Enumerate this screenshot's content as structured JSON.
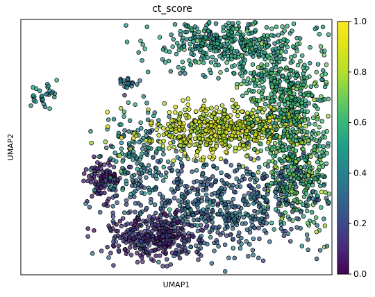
{
  "chart_data": {
    "type": "scatter",
    "title": "ct_score",
    "xlabel": "UMAP1",
    "ylabel": "UMAP2",
    "x_ticks": "hidden",
    "y_ticks": "hidden",
    "grid": false,
    "point_style": {
      "edge_color": "#000000",
      "alpha": 0.75
    },
    "colorbar": {
      "label": "",
      "colormap": "viridis",
      "range": [
        0,
        1
      ],
      "ticks": [
        {
          "value": 0.0,
          "label": "0.0"
        },
        {
          "value": 0.2,
          "label": "0.2"
        },
        {
          "value": 0.4,
          "label": "0.4"
        },
        {
          "value": 0.6,
          "label": "0.6"
        },
        {
          "value": 0.8,
          "label": "0.8"
        },
        {
          "value": 1.0,
          "label": "1.0"
        }
      ],
      "placement": "right"
    },
    "regions": [
      {
        "note": "small isolated cluster, far left",
        "center": [
          -9.2,
          6.2
        ],
        "spread": [
          0.5,
          0.4
        ],
        "count": 30,
        "score_mean": 0.45,
        "score_sd": 0.06
      },
      {
        "note": "upper-left small cluster",
        "center": [
          -4.4,
          7.0
        ],
        "spread": [
          0.4,
          0.15
        ],
        "count": 20,
        "score_mean": 0.35,
        "score_sd": 0.05
      },
      {
        "note": "far-left dark cluster",
        "center": [
          -5.7,
          1.7
        ],
        "spread": [
          0.5,
          0.55
        ],
        "count": 110,
        "score_mean": 0.1,
        "score_sd": 0.06
      },
      {
        "note": "left arm",
        "center": [
          -3.8,
          3.2
        ],
        "spread": [
          1.1,
          1.2
        ],
        "count": 170,
        "score_mean": 0.4,
        "score_sd": 0.1
      },
      {
        "note": "top dome",
        "center": [
          1.4,
          9.2
        ],
        "spread": [
          2.0,
          0.8
        ],
        "count": 420,
        "score_mean": 0.5,
        "score_sd": 0.08
      },
      {
        "note": "right upper band",
        "center": [
          4.8,
          6.4
        ],
        "spread": [
          1.3,
          1.4
        ],
        "count": 420,
        "score_mean": 0.58,
        "score_sd": 0.08
      },
      {
        "note": "yellow diagonal band",
        "center": [
          1.2,
          4.4
        ],
        "spread": [
          2.2,
          0.7
        ],
        "count": 520,
        "score_mean": 0.85,
        "score_sd": 0.07
      },
      {
        "note": "right lower band",
        "center": [
          5.5,
          2.4
        ],
        "spread": [
          1.0,
          1.6
        ],
        "count": 420,
        "score_mean": 0.6,
        "score_sd": 0.1
      },
      {
        "note": "lower mass",
        "center": [
          0.8,
          0.2
        ],
        "spread": [
          2.8,
          1.4
        ],
        "count": 620,
        "score_mean": 0.3,
        "score_sd": 0.07
      },
      {
        "note": "bottom-left dark",
        "center": [
          -2.8,
          -1.4
        ],
        "spread": [
          1.3,
          0.6
        ],
        "count": 320,
        "score_mean": 0.12,
        "score_sd": 0.06
      }
    ],
    "xlim": [
      -10.5,
      7.5
    ],
    "ylim": [
      -3.5,
      10.5
    ]
  }
}
